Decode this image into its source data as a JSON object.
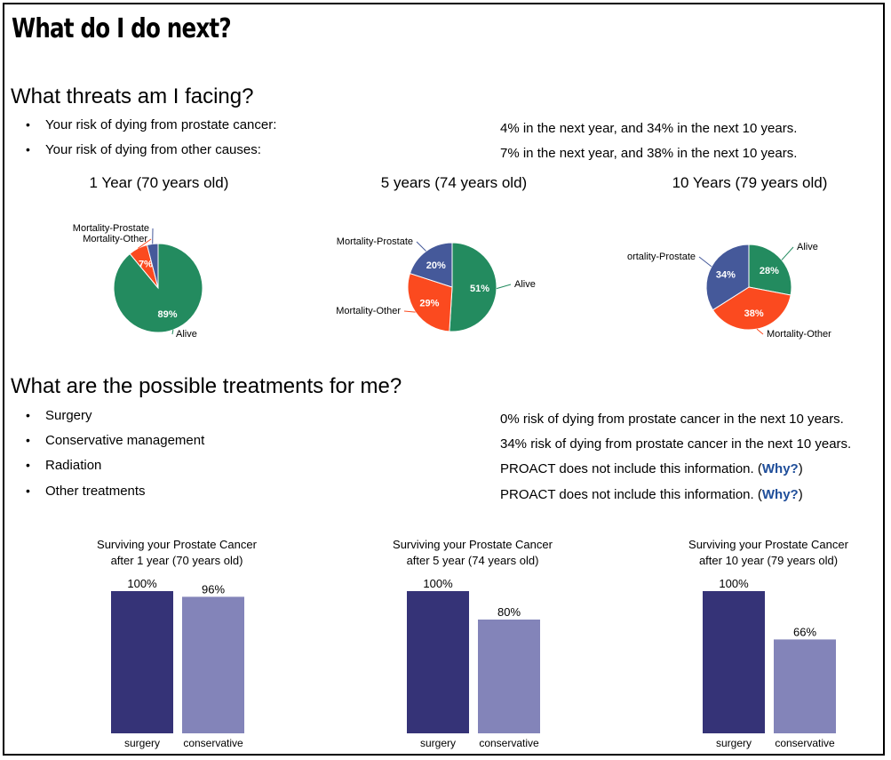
{
  "title": "What do I do next?",
  "threats": {
    "heading": "What threats am I facing?",
    "items": [
      {
        "label": "Your risk of dying from prostate cancer:",
        "value": "4% in the next year, and 34% in the next 10 years."
      },
      {
        "label": "Your risk of dying from other causes:",
        "value": "7% in the next year, and 38% in the next 10 years."
      }
    ]
  },
  "treatments": {
    "heading": "What are the possible treatments for me?",
    "items": [
      {
        "label": "Surgery",
        "value": "0% risk of dying from prostate cancer in the next 10 years."
      },
      {
        "label": "Conservative management",
        "value": "34% risk of dying from prostate cancer in the next 10 years."
      },
      {
        "label": "Radiation",
        "value": "PROACT does not include this information.",
        "link_open": "(",
        "link": "Why?",
        "link_close": ")"
      },
      {
        "label": "Other treatments",
        "value": "PROACT does not include this information.",
        "link_open": "(",
        "link": "Why?",
        "link_close": ")"
      }
    ]
  },
  "colors": {
    "alive": "#238b5f",
    "other": "#fb4a1f",
    "prostate": "#45599a",
    "surgery": "#353377",
    "conservative": "#8384b9"
  },
  "chart_data": [
    {
      "type": "pie",
      "title": "1 Year (70 years old)",
      "slices": [
        {
          "label": "Alive",
          "value": 89,
          "text": "89%",
          "color": "#238b5f"
        },
        {
          "label": "Mortality-Other",
          "value": 7,
          "text": "7%",
          "color": "#fb4a1f"
        },
        {
          "label": "Mortality-Prostate",
          "value": 4,
          "text": "",
          "color": "#45599a"
        }
      ]
    },
    {
      "type": "pie",
      "title": "5 years (74 years old)",
      "slices": [
        {
          "label": "Alive",
          "value": 51,
          "text": "51%",
          "color": "#238b5f"
        },
        {
          "label": "Mortality-Other",
          "value": 29,
          "text": "29%",
          "color": "#fb4a1f"
        },
        {
          "label": "Mortality-Prostate",
          "value": 20,
          "text": "20%",
          "color": "#45599a"
        }
      ]
    },
    {
      "type": "pie",
      "title": "10 Years (79 years old)",
      "slices": [
        {
          "label": "Alive",
          "value": 28,
          "text": "28%",
          "color": "#238b5f"
        },
        {
          "label": "Mortality-Other",
          "value": 38,
          "text": "38%",
          "color": "#fb4a1f"
        },
        {
          "label": "ortality-Prostate",
          "value": 34,
          "text": "34%",
          "color": "#45599a"
        }
      ]
    },
    {
      "type": "bar",
      "title": [
        "Surviving your Prostate Cancer",
        "after 1 year (70 years old)"
      ],
      "categories": [
        "surgery",
        "conservative"
      ],
      "values": [
        100,
        96
      ],
      "value_labels": [
        "100%",
        "96%"
      ],
      "ylim": [
        0,
        100
      ]
    },
    {
      "type": "bar",
      "title": [
        "Surviving your Prostate Cancer",
        "after 5 year (74 years old)"
      ],
      "categories": [
        "surgery",
        "conservative"
      ],
      "values": [
        100,
        80
      ],
      "value_labels": [
        "100%",
        "80%"
      ],
      "ylim": [
        0,
        100
      ]
    },
    {
      "type": "bar",
      "title": [
        "Surviving your Prostate Cancer",
        "after 10 year (79 years old)"
      ],
      "categories": [
        "surgery",
        "conservative"
      ],
      "values": [
        100,
        66
      ],
      "value_labels": [
        "100%",
        "66%"
      ],
      "ylim": [
        0,
        100
      ]
    }
  ]
}
